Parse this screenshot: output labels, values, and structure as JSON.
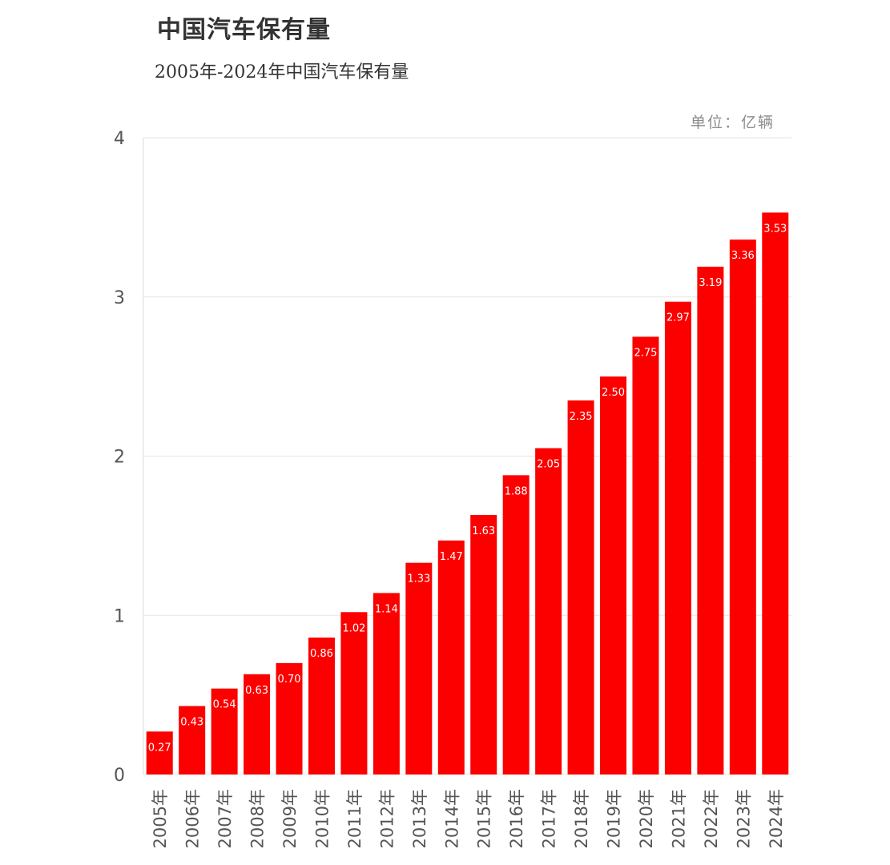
{
  "title": "中国汽车保有量",
  "subtitle": "2005年-2024年中国汽车保有量",
  "unit_label": "单位：亿辆",
  "colors": {
    "bar": "#fc0000",
    "grid": "#e6e6e6",
    "tick_text": "#555555",
    "bar_label": "#ffffff"
  },
  "chart_data": {
    "type": "bar",
    "categories": [
      "2005年",
      "2006年",
      "2007年",
      "2008年",
      "2009年",
      "2010年",
      "2011年",
      "2012年",
      "2013年",
      "2014年",
      "2015年",
      "2016年",
      "2017年",
      "2018年",
      "2019年",
      "2020年",
      "2021年",
      "2022年",
      "2023年",
      "2024年"
    ],
    "values": [
      0.27,
      0.43,
      0.54,
      0.63,
      0.7,
      0.86,
      1.02,
      1.14,
      1.33,
      1.47,
      1.63,
      1.88,
      2.05,
      2.35,
      2.5,
      2.75,
      2.97,
      3.19,
      3.36,
      3.53
    ],
    "value_labels": [
      "0.27",
      "0.43",
      "0.54",
      "0.63",
      "0.70",
      "0.86",
      "1.02",
      "1.14",
      "1.33",
      "1.47",
      "1.63",
      "1.88",
      "2.05",
      "2.35",
      "2.50",
      "2.75",
      "2.97",
      "3.19",
      "3.36",
      "3.53"
    ],
    "y_ticks": [
      "0",
      "1",
      "2",
      "3",
      "4"
    ],
    "ylim": [
      0,
      4
    ],
    "grid": true,
    "legend": "none"
  }
}
